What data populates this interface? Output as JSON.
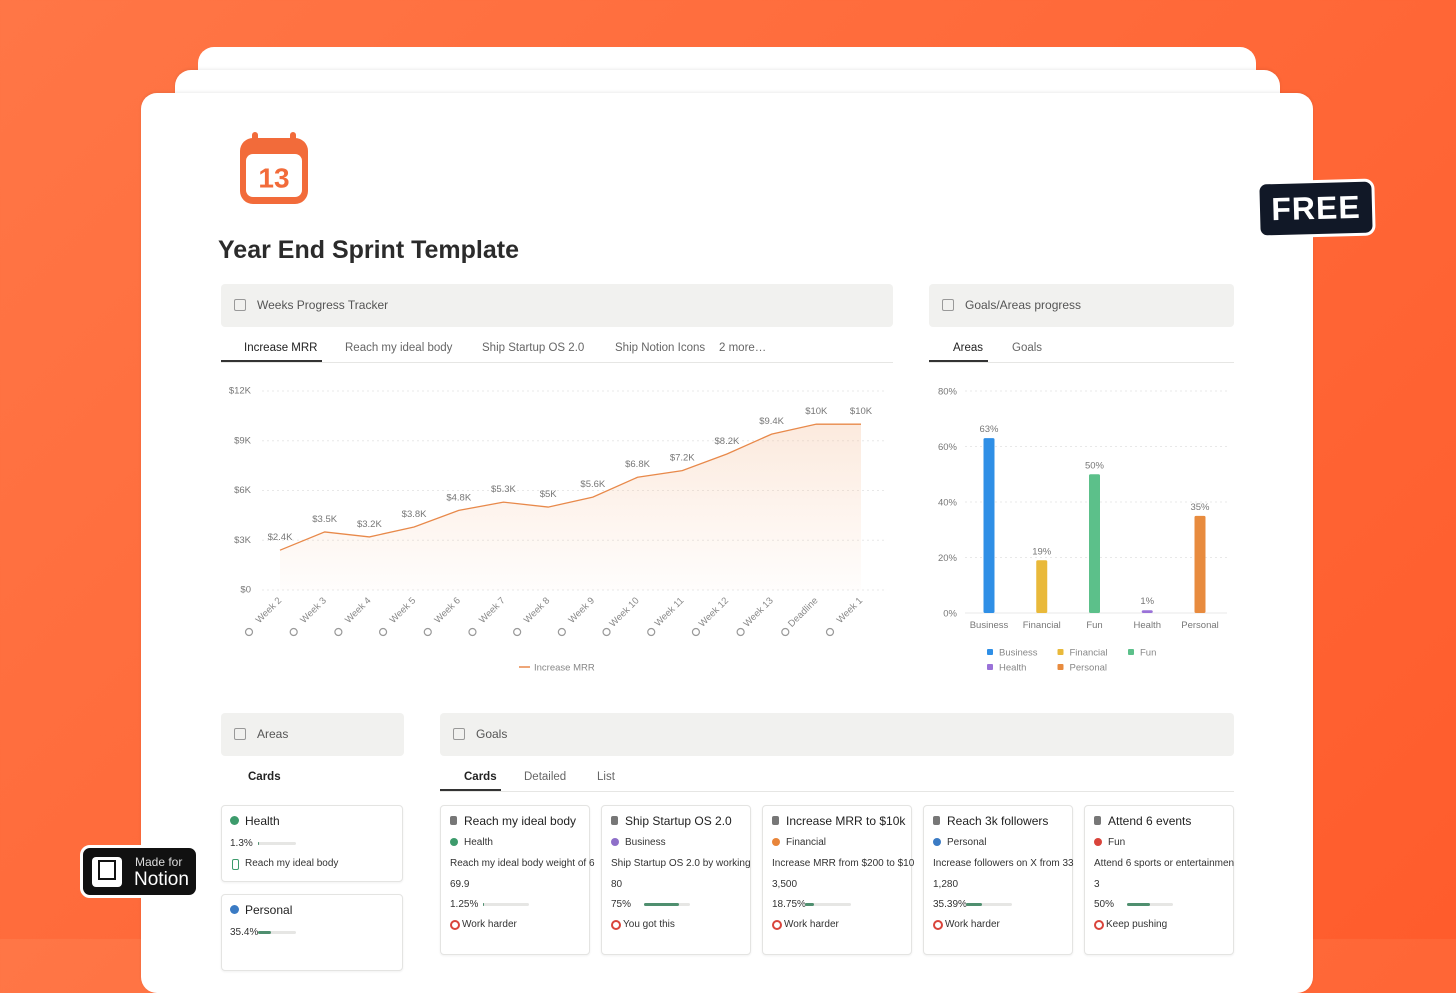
{
  "header": {
    "title": "Year End Sprint Template",
    "icon_day": "13",
    "badge": "FREE",
    "made_for": "Made for",
    "notion": "Notion"
  },
  "tracker": {
    "title": "Weeks Progress Tracker",
    "tabs": [
      "Increase MRR",
      "Reach my ideal body",
      "Ship Startup OS 2.0",
      "Ship Notion Icons",
      "2 more…"
    ]
  },
  "progress_panel": {
    "title": "Goals/Areas progress",
    "tabs": [
      "Areas",
      "Goals"
    ]
  },
  "chart_data": [
    {
      "type": "line",
      "categories": [
        "Week 2",
        "Week 3",
        "Week 4",
        "Week 5",
        "Week 6",
        "Week 7",
        "Week 8",
        "Week 9",
        "Week 10",
        "Week 11",
        "Week 12",
        "Week 13",
        "Deadline",
        "Week 1"
      ],
      "series": [
        {
          "name": "Increase MRR",
          "color": "#e8894a",
          "values": [
            2400,
            3500,
            3200,
            3800,
            4800,
            5300,
            5000,
            5600,
            6800,
            7200,
            8200,
            9400,
            10000,
            10000
          ],
          "value_labels": [
            "$2.4K",
            "$3.5K",
            "$3.2K",
            "$3.8K",
            "$4.8K",
            "$5.3K",
            "$5K",
            "$5.6K",
            "$6.8K",
            "$7.2K",
            "$8.2K",
            "$9.4K",
            "$10K",
            "$10K"
          ]
        }
      ],
      "ylim": [
        0,
        12000
      ],
      "yticks": [
        {
          "value": 0,
          "label": "$0"
        },
        {
          "value": 3000,
          "label": "$3K"
        },
        {
          "value": 6000,
          "label": "$6K"
        },
        {
          "value": 9000,
          "label": "$9K"
        },
        {
          "value": 12000,
          "label": "$12K"
        }
      ],
      "grid": true,
      "legend": "bottom"
    },
    {
      "type": "bar",
      "categories": [
        "Business",
        "Financial",
        "Fun",
        "Health",
        "Personal"
      ],
      "values": [
        63,
        19,
        50,
        1,
        35
      ],
      "value_labels": [
        "63%",
        "19%",
        "50%",
        "1%",
        "35%"
      ],
      "colors": [
        "#2f8fe6",
        "#e9b93a",
        "#5cc08a",
        "#9a72d8",
        "#e88b3e"
      ],
      "ylim": [
        0,
        80
      ],
      "yticks": [
        {
          "value": 0,
          "label": "0%"
        },
        {
          "value": 20,
          "label": "20%"
        },
        {
          "value": 40,
          "label": "40%"
        },
        {
          "value": 60,
          "label": "60%"
        },
        {
          "value": 80,
          "label": "80%"
        }
      ],
      "grid": true,
      "legend": "bottom"
    }
  ],
  "areas": {
    "title": "Areas",
    "view": "Cards",
    "cards": [
      {
        "name": "Health",
        "progress": {
          "value": 1.3,
          "label": "1.3%"
        },
        "goal": "Reach my ideal body"
      },
      {
        "name": "Personal",
        "progress": {
          "value": 35.4,
          "label": "35.4%"
        }
      }
    ]
  },
  "goals": {
    "title": "Goals",
    "views": [
      "Cards",
      "Detailed",
      "List"
    ],
    "cards": [
      {
        "name": "Reach my ideal body",
        "area": "Health",
        "description": "Reach my ideal body weight of 6",
        "current": "69.9",
        "progress": {
          "value": 1.25,
          "label": "1.25%"
        },
        "status": "Work harder"
      },
      {
        "name": "Ship Startup OS 2.0",
        "area": "Business",
        "description": "Ship Startup OS 2.0 by working",
        "current": "80",
        "progress": {
          "value": 75,
          "label": "75%"
        },
        "status": "You got this"
      },
      {
        "name": "Increase MRR to $10k",
        "area": "Financial",
        "description": "Increase MRR from $200 to $10",
        "current": "3,500",
        "progress": {
          "value": 18.75,
          "label": "18.75%"
        },
        "status": "Work harder"
      },
      {
        "name": "Reach 3k followers",
        "area": "Personal",
        "description": "Increase followers on X from 33",
        "current": "1,280",
        "progress": {
          "value": 35.39,
          "label": "35.39%"
        },
        "status": "Work harder"
      },
      {
        "name": "Attend 6 events",
        "area": "Fun",
        "description": "Attend 6 sports or entertainmen",
        "current": "3",
        "progress": {
          "value": 50,
          "label": "50%"
        },
        "status": "Keep pushing"
      }
    ]
  }
}
